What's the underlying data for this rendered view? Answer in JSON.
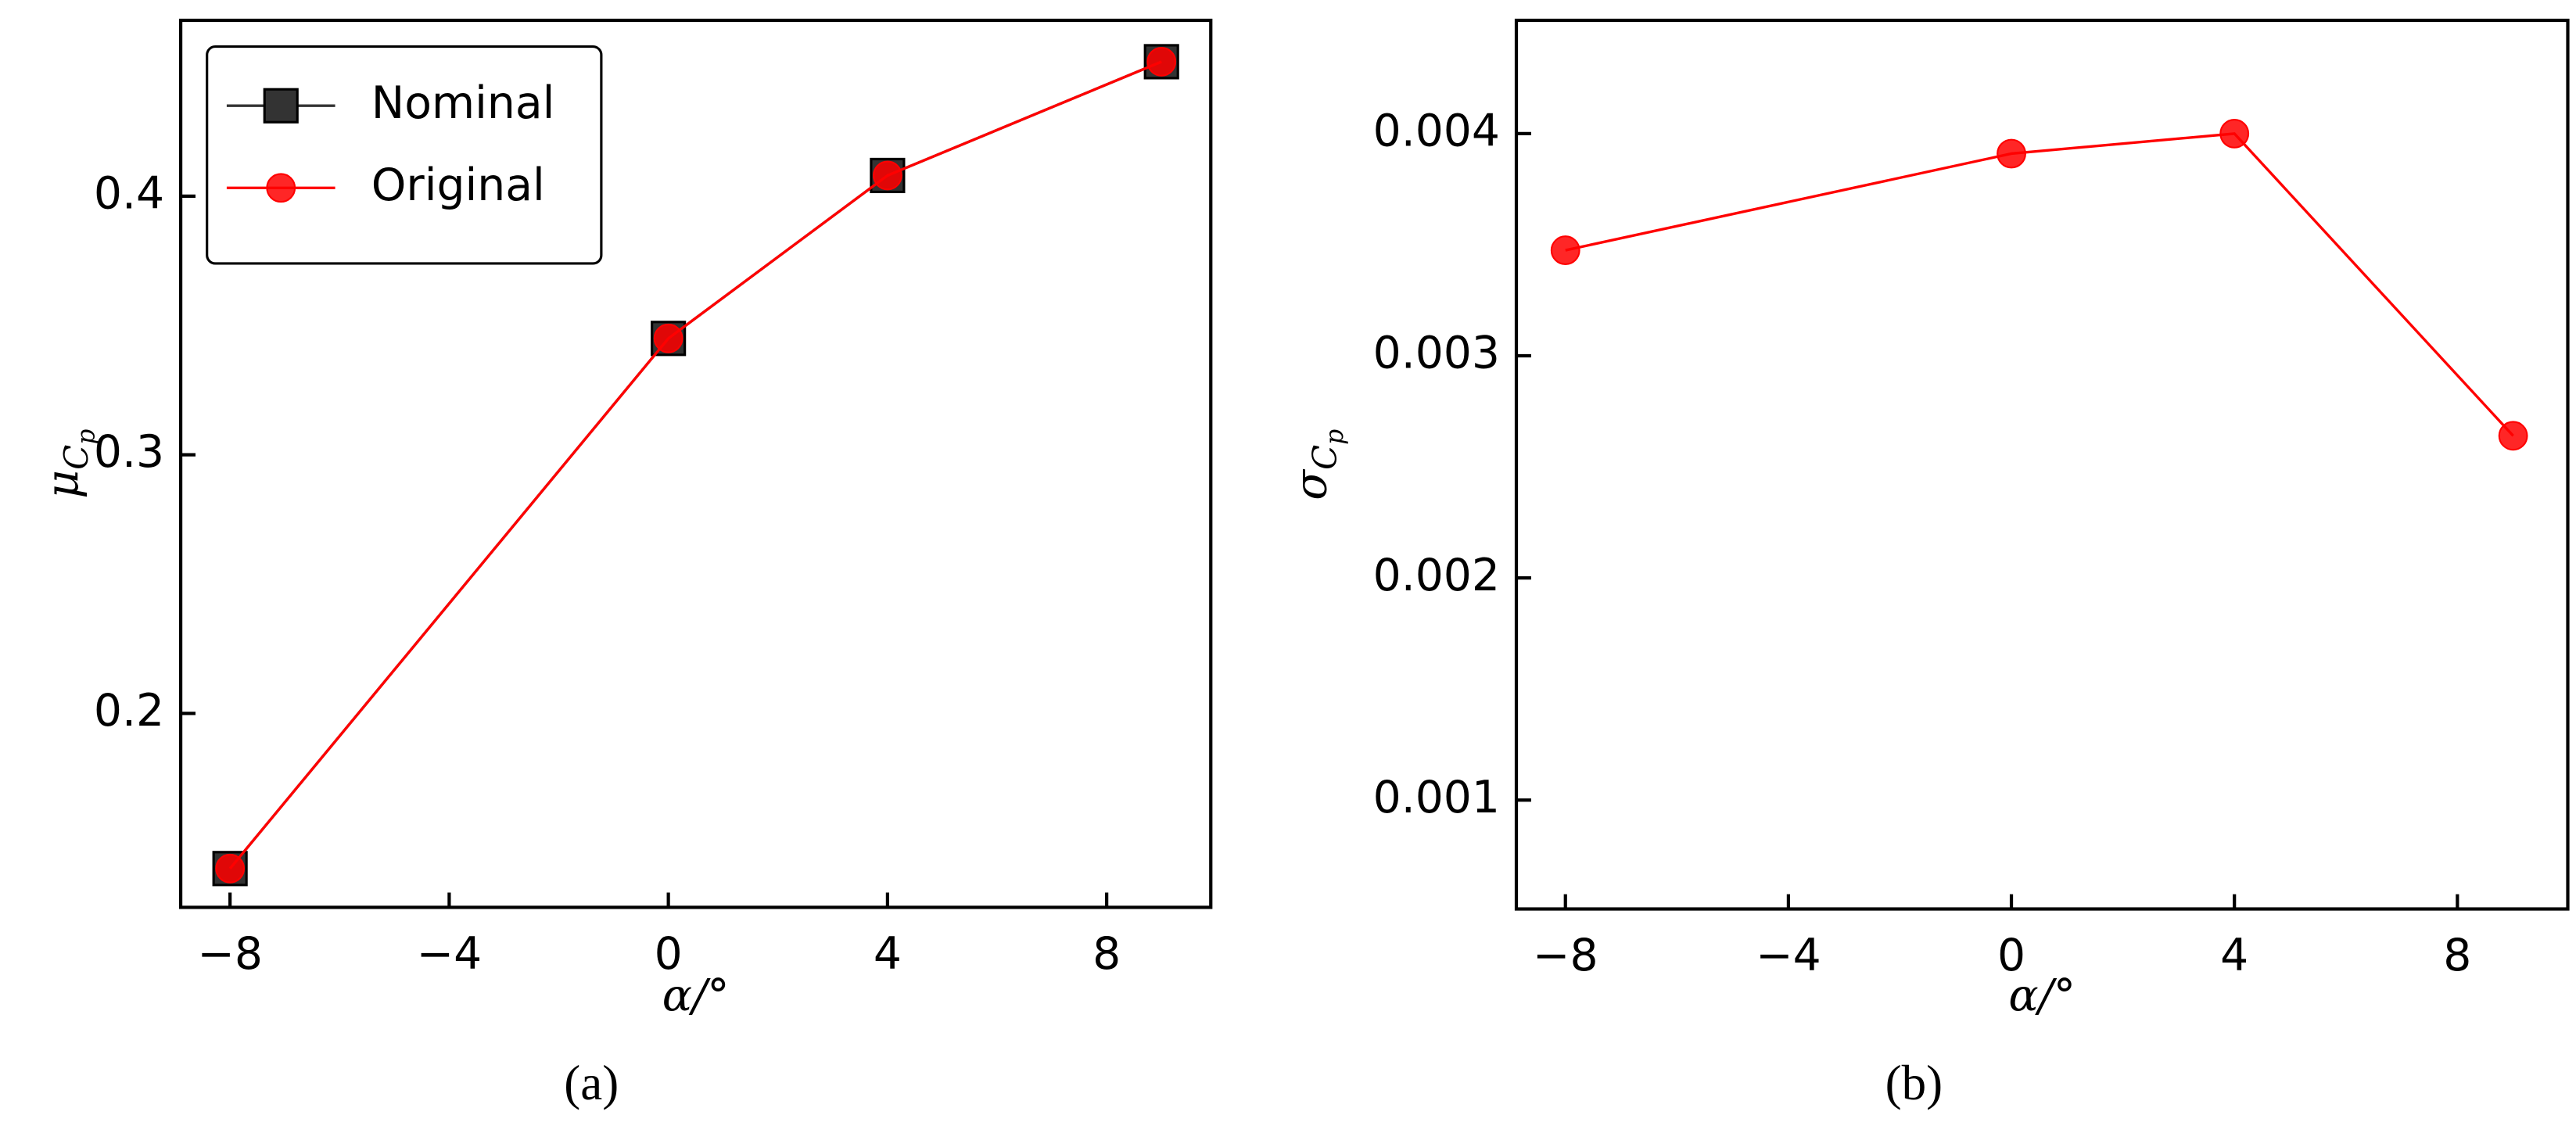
{
  "chart_data": [
    {
      "type": "line",
      "caption": "(a)",
      "xlabel": "α/°",
      "ylabel": {
        "symbol": "μ",
        "sub": "C",
        "subsub": "p"
      },
      "x": [
        -8,
        0,
        4,
        9
      ],
      "series": [
        {
          "name": "Nominal",
          "color": "#333333",
          "marker": "square",
          "values": [
            0.14,
            0.345,
            0.408,
            0.452
          ]
        },
        {
          "name": "Original",
          "color": "#ff0000",
          "marker": "circle",
          "values": [
            0.14,
            0.345,
            0.408,
            0.452
          ]
        }
      ],
      "xlim": [
        -8.9,
        9.9
      ],
      "xticks": [
        -8,
        -4,
        0,
        4,
        8
      ],
      "ylim": [
        0.125,
        0.468
      ],
      "yticks": [
        0.2,
        0.3,
        0.4
      ],
      "legend": "upper left"
    },
    {
      "type": "line",
      "caption": "(b)",
      "xlabel": "α/°",
      "ylabel": {
        "symbol": "σ",
        "sub": "C",
        "subsub": "p"
      },
      "x": [
        -8,
        0,
        4,
        9
      ],
      "series": [
        {
          "name": "Original",
          "color": "#ff0000",
          "marker": "circle",
          "values": [
            0.003475,
            0.00391,
            0.004,
            0.00264
          ]
        }
      ],
      "xlim": [
        -8.88,
        9.98
      ],
      "xticks": [
        -8,
        -4,
        0,
        4,
        8
      ],
      "ylim": [
        0.00051,
        0.00451
      ],
      "yticks": [
        0.001,
        0.002,
        0.003,
        0.004
      ]
    }
  ]
}
